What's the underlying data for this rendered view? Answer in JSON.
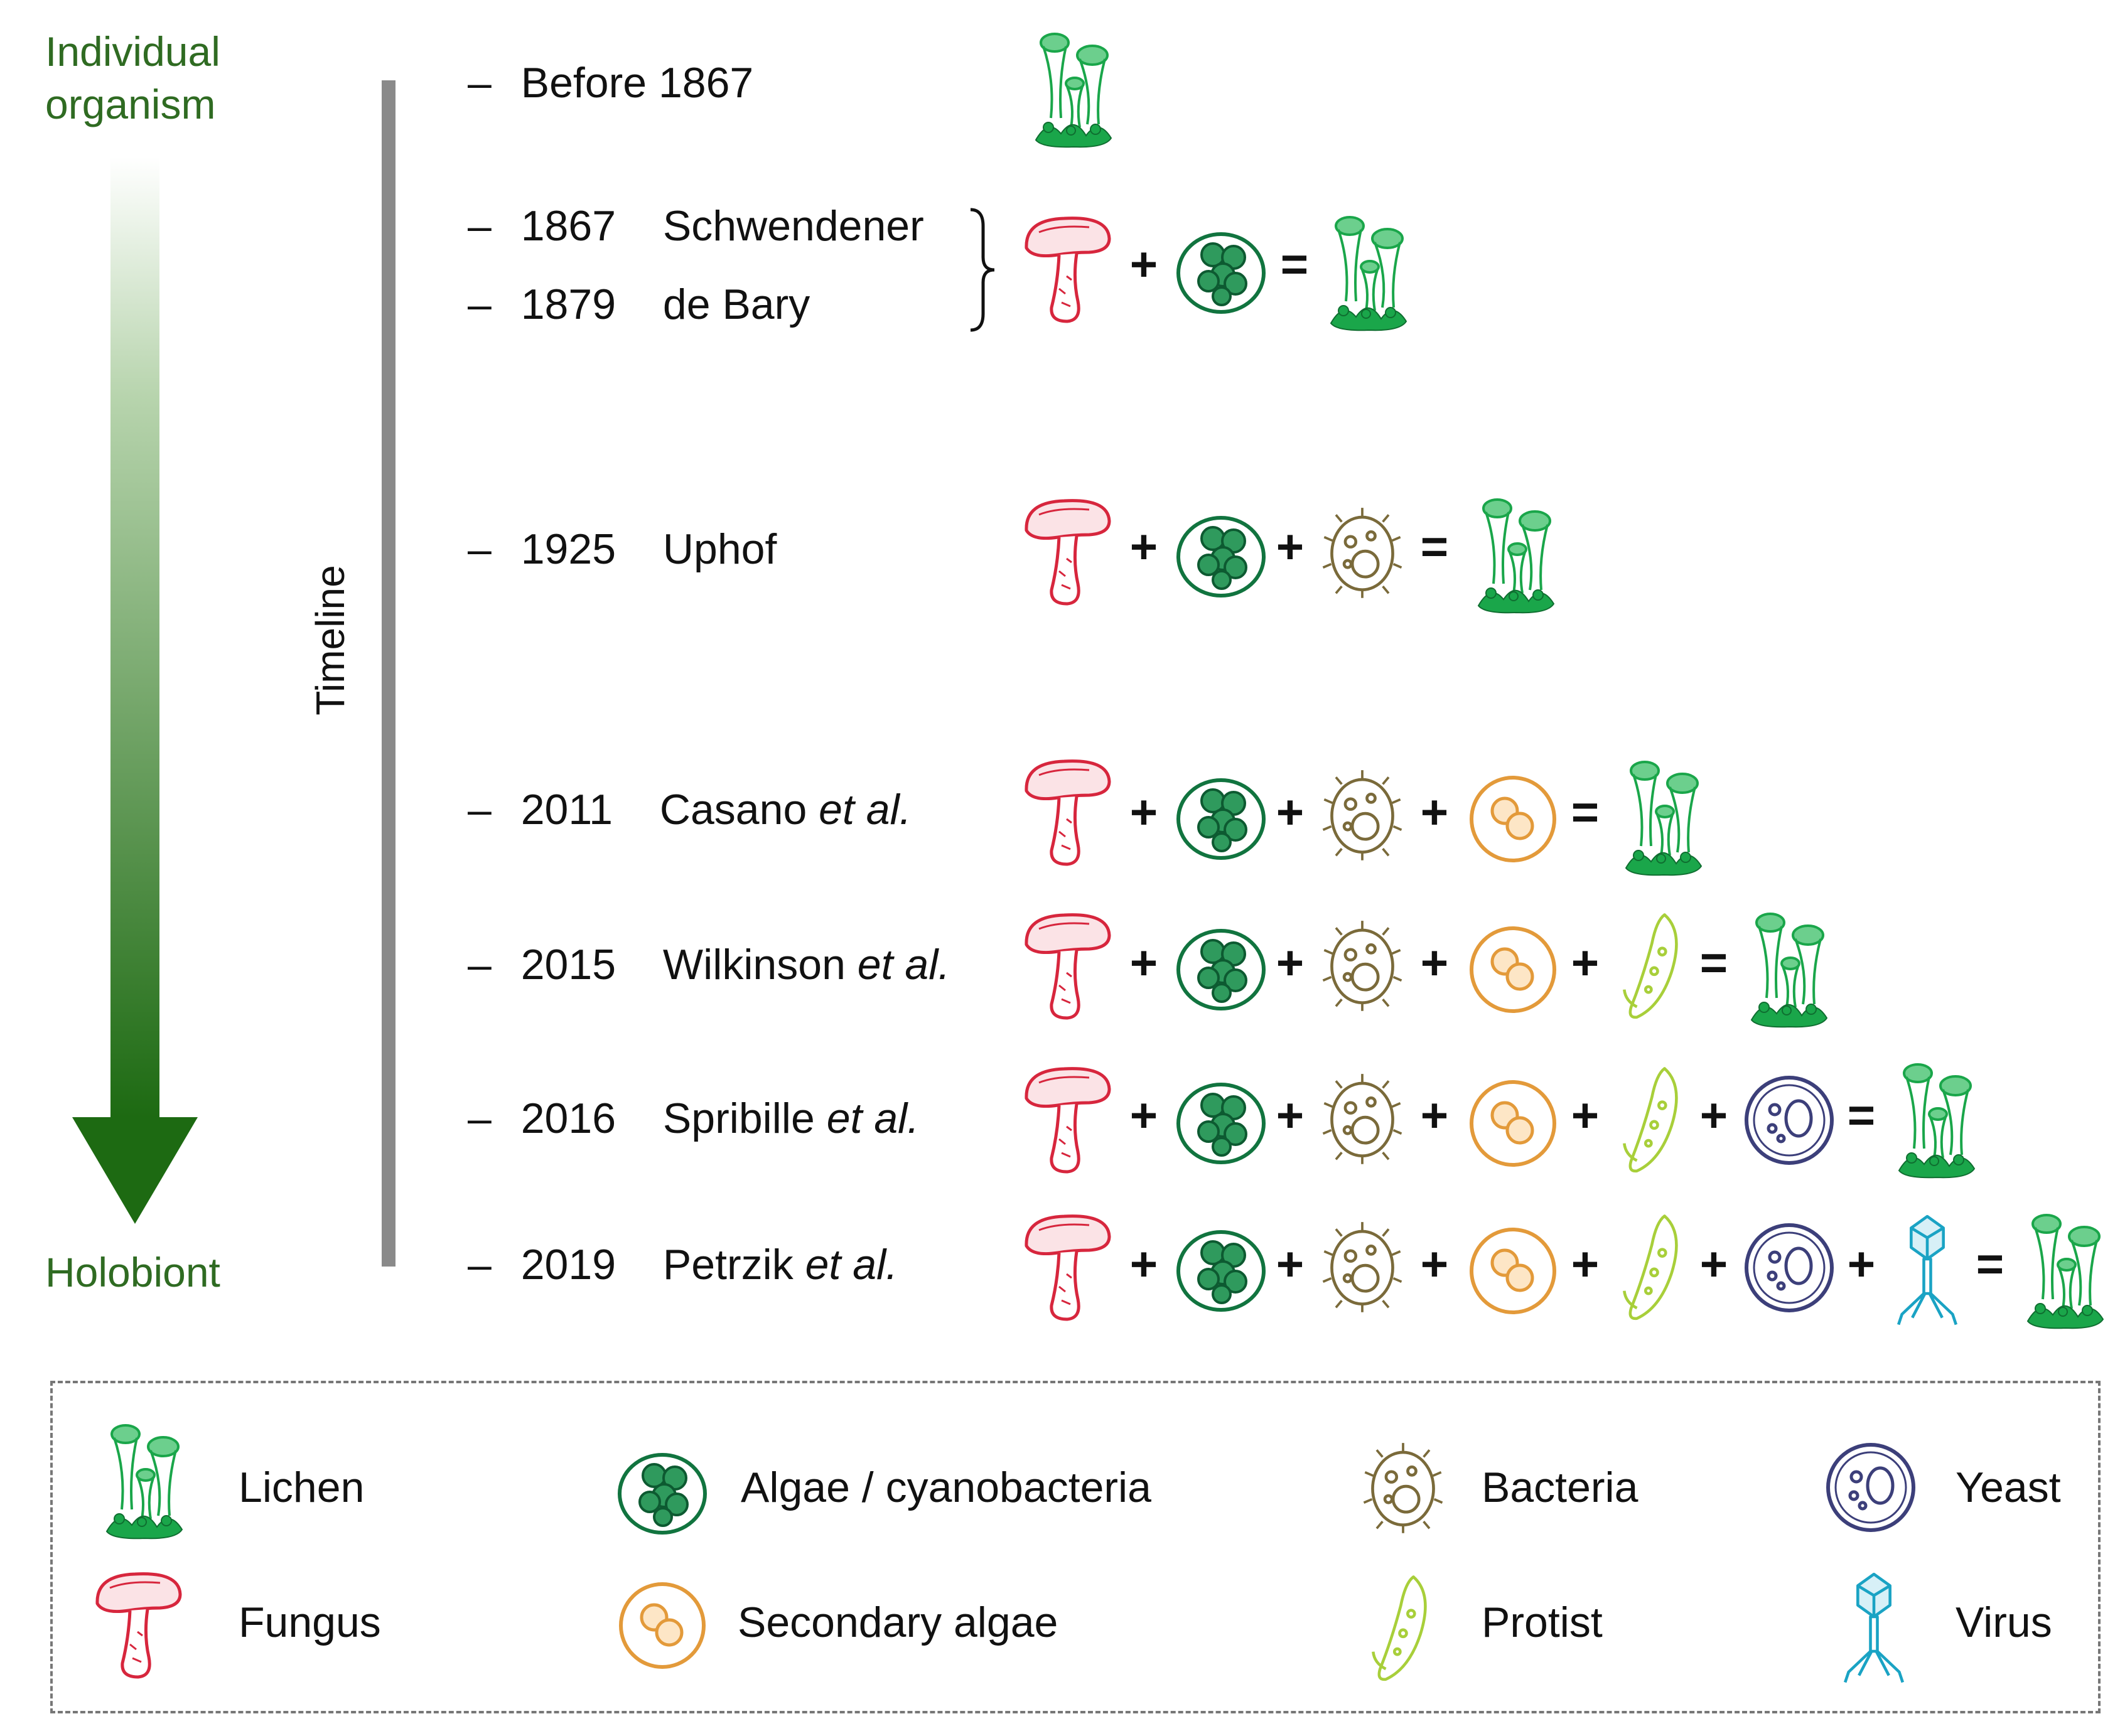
{
  "labels": {
    "individual_line1": "Individual",
    "individual_line2": "organism",
    "holobiont": "Holobiont",
    "timeline": "Timeline"
  },
  "operators": {
    "plus": "+",
    "equals": "=",
    "dash": "–"
  },
  "rows": [
    {
      "year": "Before 1867",
      "author": "",
      "etal": "",
      "components": []
    },
    {
      "year": "1867",
      "author": "Schwendener",
      "etal": "",
      "components": [
        "fungus",
        "algae"
      ]
    },
    {
      "year": "1879",
      "author": "de Bary",
      "etal": "",
      "components": [
        "fungus",
        "algae"
      ]
    },
    {
      "year": "1925",
      "author": "Uphof",
      "etal": "",
      "components": [
        "fungus",
        "algae",
        "bacteria"
      ]
    },
    {
      "year": "2011",
      "author": "Casano",
      "etal": "et al.",
      "components": [
        "fungus",
        "algae",
        "bacteria",
        "secondary-algae"
      ]
    },
    {
      "year": "2015",
      "author": "Wilkinson",
      "etal": "et al.",
      "components": [
        "fungus",
        "algae",
        "bacteria",
        "secondary-algae",
        "protist"
      ]
    },
    {
      "year": "2016",
      "author": "Spribille",
      "etal": "et al.",
      "components": [
        "fungus",
        "algae",
        "bacteria",
        "secondary-algae",
        "protist",
        "yeast"
      ]
    },
    {
      "year": "2019",
      "author": "Petrzik",
      "etal": "et al.",
      "components": [
        "fungus",
        "algae",
        "bacteria",
        "secondary-algae",
        "protist",
        "yeast",
        "virus"
      ]
    }
  ],
  "legend": {
    "lichen": "Lichen",
    "algae": "Algae / cyanobacteria",
    "bacteria": "Bacteria",
    "yeast": "Yeast",
    "fungus": "Fungus",
    "secondary_algae": "Secondary algae",
    "protist": "Protist",
    "virus": "Virus"
  },
  "colors": {
    "label_green": "#2f6b22",
    "lichen": "#1aa64a",
    "fungus": "#d7263d",
    "algae": "#11743f",
    "bacteria": "#7a6a3a",
    "secondary_algae": "#e39a3a",
    "protist": "#a8cf3a",
    "yeast": "#3c3f7a",
    "virus": "#1aa3c4",
    "timeline_bar": "#8a8a8a"
  }
}
